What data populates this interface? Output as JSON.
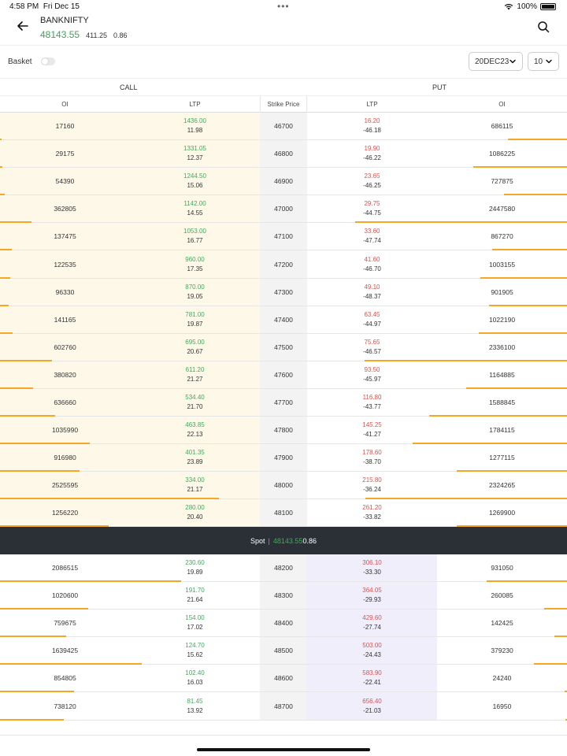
{
  "status": {
    "time": "4:58 PM",
    "date": "Fri Dec 15",
    "battery": "100%"
  },
  "header": {
    "symbol": "BANKNIFTY",
    "ltp": "48143.55",
    "change": "411.25",
    "change_pct": "0.86"
  },
  "toolbar": {
    "basket_label": "Basket",
    "expiry": "20DEC23",
    "strike_count": "10"
  },
  "sides": {
    "call": "CALL",
    "put": "PUT"
  },
  "columns": {
    "call_oi": "OI",
    "call_ltp": "LTP",
    "strike": "Strike Price",
    "put_ltp": "LTP",
    "put_oi": "OI"
  },
  "spot": {
    "label": "Spot",
    "value": "48143.55",
    "change": "0.86"
  },
  "colors": {
    "ltp_up": "#43a85e",
    "ltp_down": "#d9534f",
    "oi_bar": "#f5a623",
    "call_itm_bg": "#fef8e9",
    "put_itm_bg": "#f1eefb",
    "spot_bg": "#2b2f36"
  },
  "rows_above": [
    {
      "call_oi": "17160",
      "call_ltp": "1436.00",
      "call_chg": "11.98",
      "strike": "46700",
      "put_ltp": "16.20",
      "put_chg": "-46.18",
      "put_oi": "686115"
    },
    {
      "call_oi": "29175",
      "call_ltp": "1331.05",
      "call_chg": "12.37",
      "strike": "46800",
      "put_ltp": "19.90",
      "put_chg": "-46.22",
      "put_oi": "1086225"
    },
    {
      "call_oi": "54390",
      "call_ltp": "1244.50",
      "call_chg": "15.06",
      "strike": "46900",
      "put_ltp": "23.65",
      "put_chg": "-46.25",
      "put_oi": "727875"
    },
    {
      "call_oi": "362805",
      "call_ltp": "1142.00",
      "call_chg": "14.55",
      "strike": "47000",
      "put_ltp": "29.75",
      "put_chg": "-44.75",
      "put_oi": "2447580"
    },
    {
      "call_oi": "137475",
      "call_ltp": "1053.00",
      "call_chg": "16.77",
      "strike": "47100",
      "put_ltp": "33.60",
      "put_chg": "-47.74",
      "put_oi": "867270"
    },
    {
      "call_oi": "122535",
      "call_ltp": "960.00",
      "call_chg": "17.35",
      "strike": "47200",
      "put_ltp": "41.60",
      "put_chg": "-46.70",
      "put_oi": "1003155"
    },
    {
      "call_oi": "96330",
      "call_ltp": "870.00",
      "call_chg": "19.05",
      "strike": "47300",
      "put_ltp": "49.10",
      "put_chg": "-48.37",
      "put_oi": "901905"
    },
    {
      "call_oi": "141165",
      "call_ltp": "781.00",
      "call_chg": "19.87",
      "strike": "47400",
      "put_ltp": "63.45",
      "put_chg": "-44.97",
      "put_oi": "1022190"
    },
    {
      "call_oi": "602760",
      "call_ltp": "695.00",
      "call_chg": "20.67",
      "strike": "47500",
      "put_ltp": "75.65",
      "put_chg": "-46.57",
      "put_oi": "2336100"
    },
    {
      "call_oi": "380820",
      "call_ltp": "611.20",
      "call_chg": "21.27",
      "strike": "47600",
      "put_ltp": "93.50",
      "put_chg": "-45.97",
      "put_oi": "1164885"
    },
    {
      "call_oi": "636660",
      "call_ltp": "534.40",
      "call_chg": "21.70",
      "strike": "47700",
      "put_ltp": "116.80",
      "put_chg": "-43.77",
      "put_oi": "1588845"
    },
    {
      "call_oi": "1035990",
      "call_ltp": "463.85",
      "call_chg": "22.13",
      "strike": "47800",
      "put_ltp": "145.25",
      "put_chg": "-41.27",
      "put_oi": "1784115"
    },
    {
      "call_oi": "916980",
      "call_ltp": "401.35",
      "call_chg": "23.89",
      "strike": "47900",
      "put_ltp": "178.60",
      "put_chg": "-38.70",
      "put_oi": "1277115"
    },
    {
      "call_oi": "2525595",
      "call_ltp": "334.00",
      "call_chg": "21.17",
      "strike": "48000",
      "put_ltp": "215.80",
      "put_chg": "-36.24",
      "put_oi": "2324265"
    },
    {
      "call_oi": "1256220",
      "call_ltp": "280.00",
      "call_chg": "20.40",
      "strike": "48100",
      "put_ltp": "261.20",
      "put_chg": "-33.82",
      "put_oi": "1269900"
    }
  ],
  "rows_below": [
    {
      "call_oi": "2086515",
      "call_ltp": "230.60",
      "call_chg": "19.89",
      "strike": "48200",
      "put_ltp": "306.10",
      "put_chg": "-33.30",
      "put_oi": "931050"
    },
    {
      "call_oi": "1020600",
      "call_ltp": "191.70",
      "call_chg": "21.64",
      "strike": "48300",
      "put_ltp": "364.05",
      "put_chg": "-29.93",
      "put_oi": "260085"
    },
    {
      "call_oi": "759675",
      "call_ltp": "154.00",
      "call_chg": "17.02",
      "strike": "48400",
      "put_ltp": "429.60",
      "put_chg": "-27.74",
      "put_oi": "142425"
    },
    {
      "call_oi": "1639425",
      "call_ltp": "124.70",
      "call_chg": "15.62",
      "strike": "48500",
      "put_ltp": "503.00",
      "put_chg": "-24.43",
      "put_oi": "379230"
    },
    {
      "call_oi": "854805",
      "call_ltp": "102.40",
      "call_chg": "16.03",
      "strike": "48600",
      "put_ltp": "583.90",
      "put_chg": "-22.41",
      "put_oi": "24240"
    },
    {
      "call_oi": "738120",
      "call_ltp": "81.45",
      "call_chg": "13.92",
      "strike": "48700",
      "put_ltp": "656.40",
      "put_chg": "-21.03",
      "put_oi": "16950"
    }
  ]
}
